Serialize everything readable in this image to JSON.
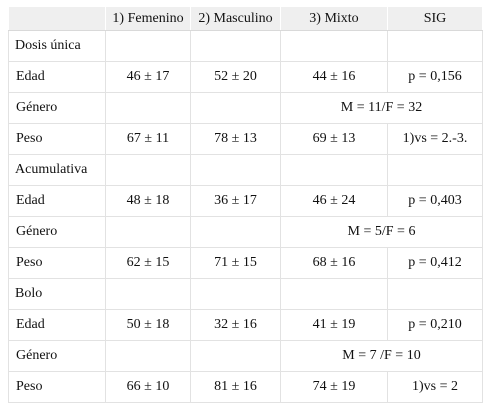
{
  "table": {
    "headers": [
      "",
      "1) Femenino",
      "2) Masculino",
      "3) Mixto",
      "SIG"
    ],
    "sections": [
      {
        "title": "Dosis única",
        "rows": [
          {
            "label": "Edad",
            "cells": [
              "46 ± 17",
              "52 ± 20",
              "44 ± 16",
              "p = 0,156"
            ]
          },
          {
            "label": "Género",
            "merged": "M = 11/F = 32"
          },
          {
            "label": "Peso",
            "cells": [
              "67 ± 11",
              "78 ± 13",
              "69 ± 13",
              "1)vs = 2.-3."
            ]
          }
        ]
      },
      {
        "title": "Acumulativa",
        "rows": [
          {
            "label": "Edad",
            "cells": [
              "48 ± 18",
              "36 ± 17",
              "46 ± 24",
              "p = 0,403"
            ]
          },
          {
            "label": "Género",
            "merged": "M = 5/F = 6"
          },
          {
            "label": "Peso",
            "cells": [
              "62 ± 15",
              "71 ± 15",
              "68 ± 16",
              "p = 0,412"
            ]
          }
        ]
      },
      {
        "title": "Bolo",
        "rows": [
          {
            "label": "Edad",
            "cells": [
              "50 ± 18",
              "32 ± 16",
              "41 ± 19",
              "p = 0,210"
            ]
          },
          {
            "label": "Género",
            "merged": "M = 7 /F = 10"
          },
          {
            "label": "Peso",
            "cells": [
              "66 ± 10",
              "81 ± 16",
              "74 ± 19",
              "1)vs = 2"
            ]
          }
        ]
      }
    ]
  }
}
